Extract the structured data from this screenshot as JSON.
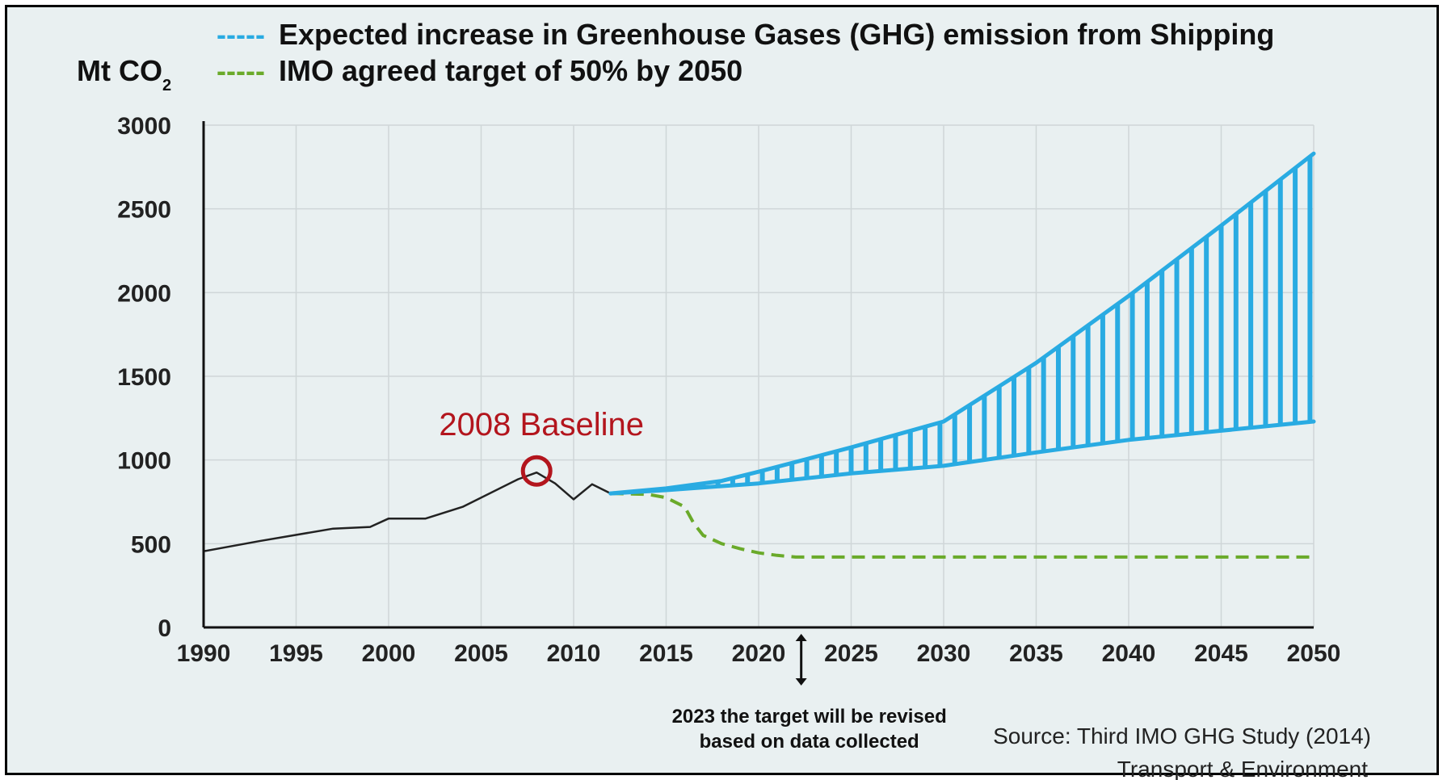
{
  "chart_data": {
    "type": "line",
    "ylabel_main": "Mt CO",
    "ylabel_sub": "2",
    "x_ticks": [
      1990,
      1995,
      2000,
      2005,
      2010,
      2015,
      2020,
      2025,
      2030,
      2035,
      2040,
      2045,
      2050
    ],
    "y_ticks": [
      0,
      500,
      1000,
      1500,
      2000,
      2500,
      3000
    ],
    "xlim": [
      1990,
      2050
    ],
    "ylim": [
      0,
      3000
    ],
    "grid": true,
    "legend": [
      {
        "marker": "-----",
        "label": "Expected increase in Greenhouse Gases (GHG) emission from Shipping",
        "color": "#29abe2"
      },
      {
        "marker": "-----",
        "label": "IMO agreed target of 50% by 2050",
        "color": "#6aaa2a"
      }
    ],
    "series": [
      {
        "key": "historical",
        "color": "#222222",
        "points": [
          [
            1990,
            455
          ],
          [
            1993,
            515
          ],
          [
            1997,
            590
          ],
          [
            1999,
            600
          ],
          [
            2000,
            650
          ],
          [
            2002,
            650
          ],
          [
            2004,
            720
          ],
          [
            2007,
            885
          ],
          [
            2008,
            925
          ],
          [
            2009,
            860
          ],
          [
            2010,
            765
          ],
          [
            2011,
            855
          ],
          [
            2012,
            800
          ]
        ]
      },
      {
        "key": "target",
        "color": "#6aaa2a",
        "points": [
          [
            2012,
            800
          ],
          [
            2014,
            795
          ],
          [
            2015,
            775
          ],
          [
            2016,
            720
          ],
          [
            2016.5,
            620
          ],
          [
            2017,
            550
          ],
          [
            2018,
            500
          ],
          [
            2019,
            470
          ],
          [
            2020,
            445
          ],
          [
            2021,
            430
          ],
          [
            2022,
            420
          ],
          [
            2030,
            420
          ],
          [
            2040,
            420
          ],
          [
            2050,
            420
          ]
        ]
      },
      {
        "key": "projection-upper",
        "color": "#29abe2",
        "points": [
          [
            2012,
            800
          ],
          [
            2015,
            830
          ],
          [
            2018,
            875
          ],
          [
            2020,
            930
          ],
          [
            2025,
            1075
          ],
          [
            2030,
            1230
          ],
          [
            2035,
            1580
          ],
          [
            2040,
            1980
          ],
          [
            2045,
            2400
          ],
          [
            2050,
            2830
          ]
        ]
      },
      {
        "key": "projection-lower",
        "color": "#29abe2",
        "points": [
          [
            2012,
            800
          ],
          [
            2015,
            820
          ],
          [
            2020,
            860
          ],
          [
            2025,
            920
          ],
          [
            2030,
            965
          ],
          [
            2035,
            1045
          ],
          [
            2040,
            1120
          ],
          [
            2045,
            1175
          ],
          [
            2050,
            1230
          ]
        ]
      }
    ],
    "annotations": {
      "baseline": {
        "text": "2008 Baseline",
        "x": 2008,
        "y": 925,
        "color": "#b3151d"
      },
      "revision_note": {
        "lines": [
          "2023 the target will be revised",
          "based on data collected"
        ],
        "x": 2022.3
      }
    },
    "source_lines": [
      "Source: Third IMO GHG Study (2014)",
      "Transport & Environment"
    ]
  }
}
